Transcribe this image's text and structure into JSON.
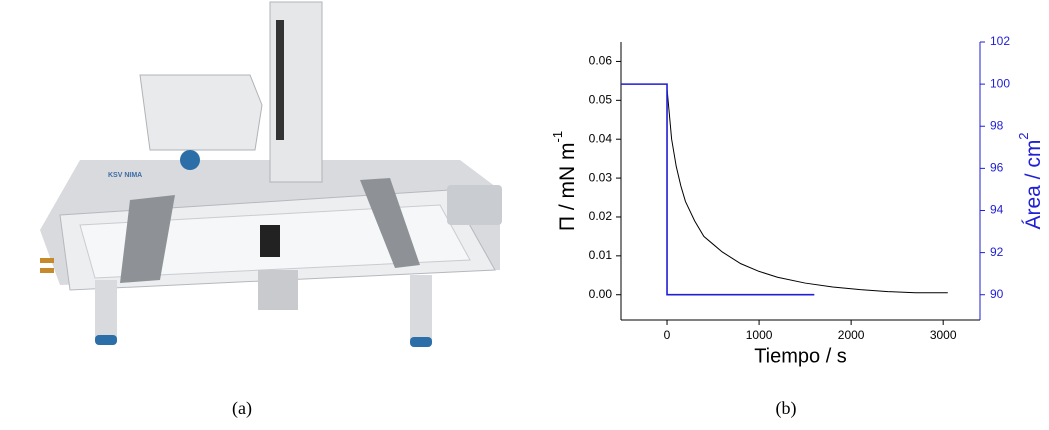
{
  "captions": [
    "(a)",
    "(b)"
  ],
  "photo": {
    "logo": "KSV NIMA"
  },
  "chart_data": {
    "type": "line",
    "x_label": "Tiempo / s",
    "y_label": {
      "text": "Π / mN m",
      "sup": "-1"
    },
    "y2_label": {
      "text": "Área / cm",
      "sup": "2",
      "color": "#1f1fd6"
    },
    "xlim": [
      -500,
      3400
    ],
    "xticks": [
      0,
      1000,
      2000,
      3000
    ],
    "ylim": [
      -0.0065,
      0.065
    ],
    "yticks": [
      {
        "value": 0,
        "label": "0.00"
      },
      {
        "value": 0.01,
        "label": "0.01"
      },
      {
        "value": 0.02,
        "label": "0.02"
      },
      {
        "value": 0.03,
        "label": "0.03"
      },
      {
        "value": 0.04,
        "label": "0.04"
      },
      {
        "value": 0.05,
        "label": "0.05"
      },
      {
        "value": 0.06,
        "label": "0.06"
      }
    ],
    "y2lim": [
      88.8,
      102
    ],
    "y2ticks": [
      90,
      92,
      94,
      96,
      98,
      100,
      102
    ],
    "series": [
      {
        "color": "#000000",
        "x": [
          0,
          0,
          50,
          100,
          150,
          200,
          300,
          400,
          500,
          600,
          800,
          1000,
          1200,
          1500,
          1800,
          2100,
          2400,
          2700,
          3050
        ],
        "values": [
          0,
          0.053,
          0.04,
          0.033,
          0.028,
          0.024,
          0.019,
          0.015,
          0.013,
          0.011,
          0.008,
          0.006,
          0.0045,
          0.003,
          0.002,
          0.0013,
          0.0008,
          0.0005,
          0.0005
        ]
      },
      {
        "color": "#1f1fd6",
        "axis": "y2",
        "x": [
          -500,
          0,
          0,
          1600
        ],
        "values": [
          100,
          100,
          90,
          90
        ]
      }
    ]
  }
}
